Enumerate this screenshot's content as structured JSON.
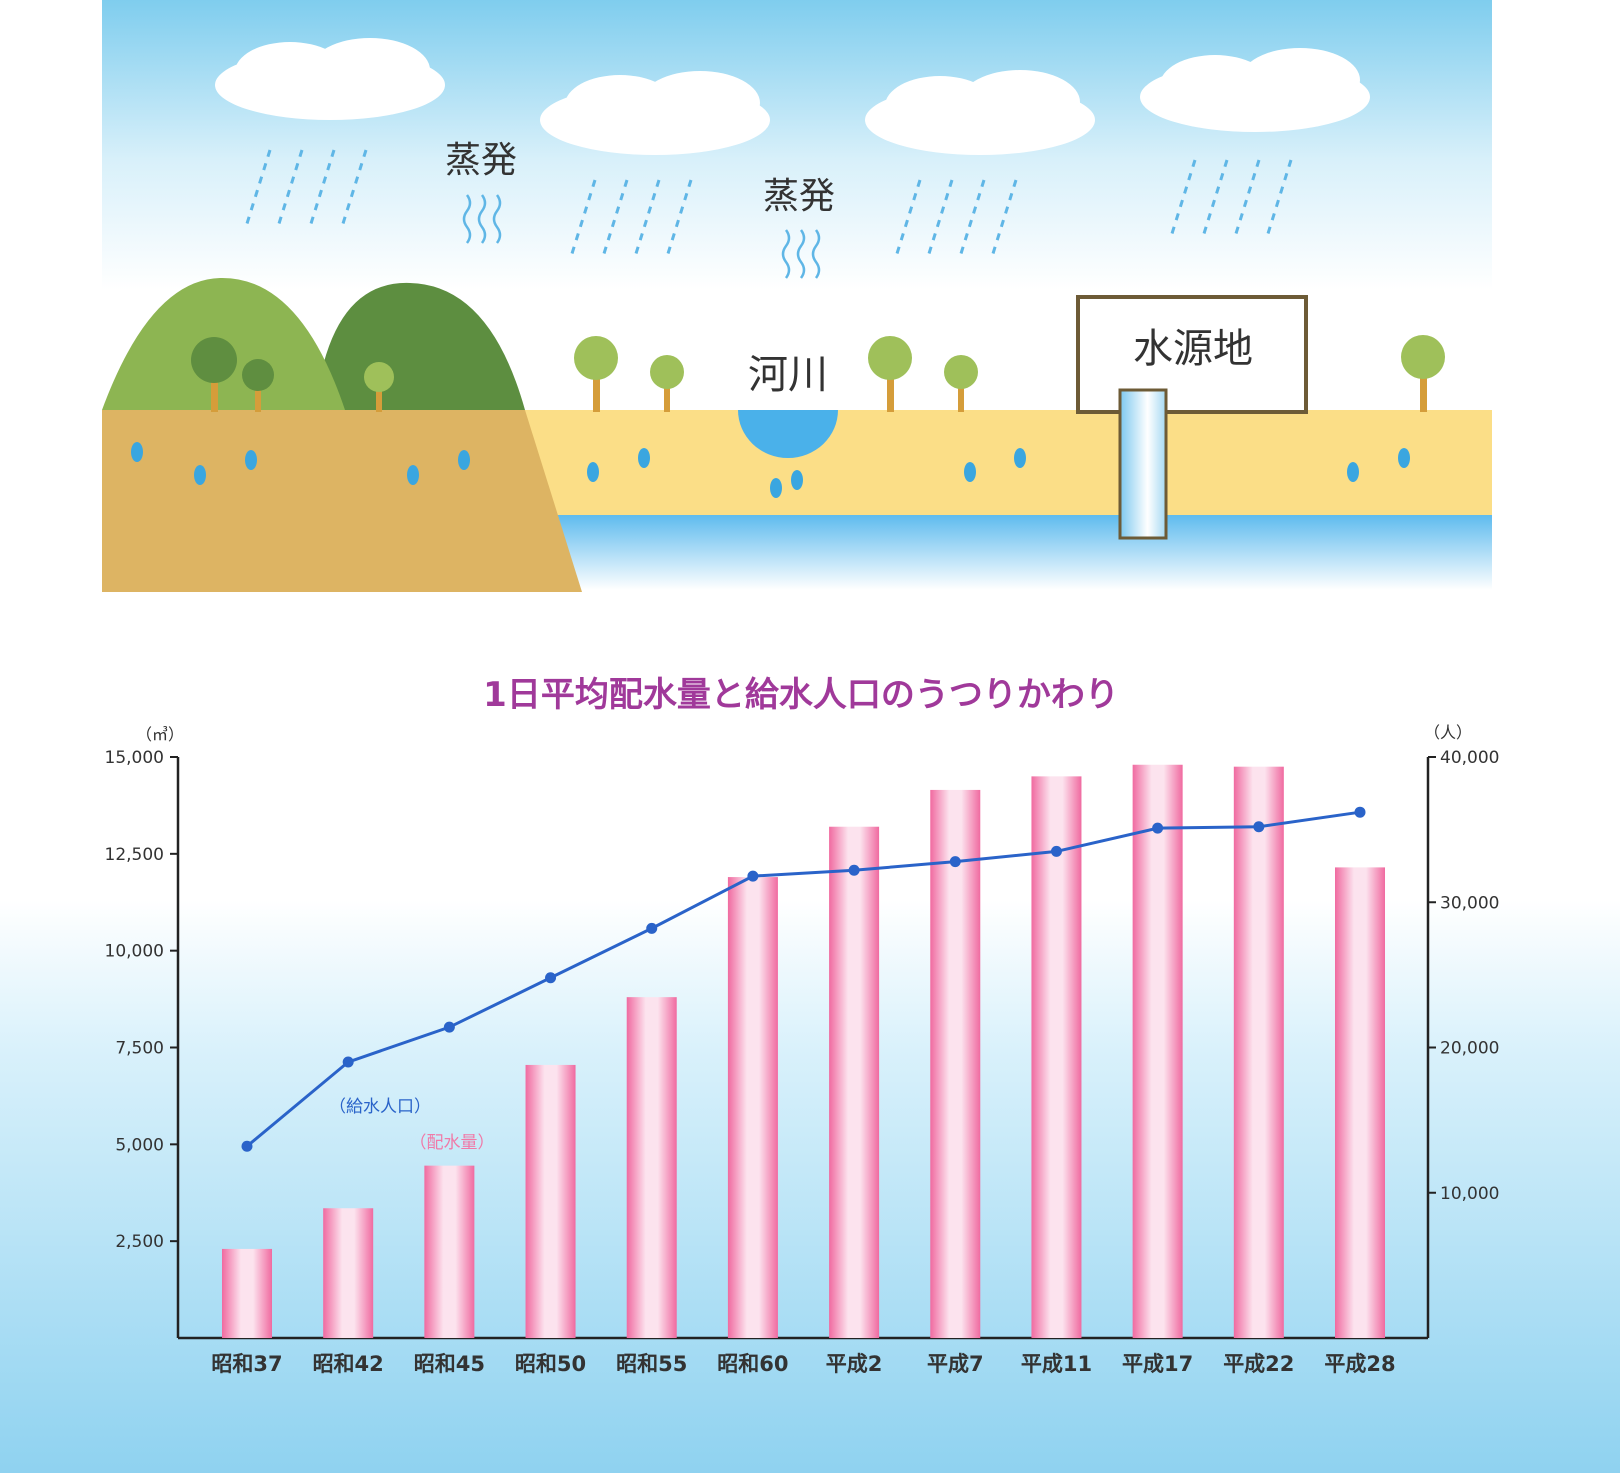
{
  "illustration": {
    "evaporation_label_1": "蒸発",
    "evaporation_label_2": "蒸発",
    "river_label": "河川",
    "water_source_label": "水源地"
  },
  "chart_data": {
    "type": "bar+line",
    "title": "1日平均配水量と給水人口のうつりかわり",
    "left_unit": "（㎥）",
    "right_unit": "（人）",
    "categories": [
      "昭和37",
      "昭和42",
      "昭和45",
      "昭和50",
      "昭和55",
      "昭和60",
      "平成2",
      "平成7",
      "平成11",
      "平成17",
      "平成22",
      "平成28"
    ],
    "left_ticks": [
      "15,000",
      "12,500",
      "10,000",
      "7,500",
      "5,000",
      "2,500"
    ],
    "right_ticks": [
      "40,000",
      "30,000",
      "20,000",
      "10,000"
    ],
    "ylim_left": [
      0,
      15000
    ],
    "ylim_right": [
      0,
      40000
    ],
    "series": [
      {
        "name": "（配水量）",
        "axis": "left",
        "kind": "bar",
        "color": "#f07aa8",
        "values": [
          2300,
          3350,
          4450,
          7050,
          8800,
          11900,
          13200,
          14150,
          14500,
          14800,
          14750,
          12150
        ]
      },
      {
        "name": "（給水人口）",
        "axis": "right",
        "kind": "line",
        "color": "#2a63c9",
        "values": [
          13200,
          19000,
          21400,
          24800,
          28200,
          31800,
          32200,
          32800,
          33500,
          35100,
          35200,
          36200
        ]
      }
    ]
  }
}
